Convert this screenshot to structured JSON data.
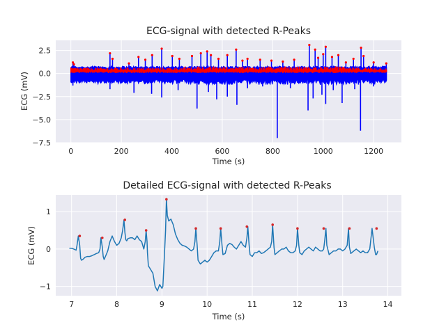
{
  "figure": {
    "background": "#ffffff",
    "axes_face": "#eaeaf2",
    "grid_color": "#ffffff"
  },
  "chart_data": [
    {
      "type": "line",
      "title": "ECG-signal with detected R-Peaks",
      "xlabel": "Time (s)",
      "ylabel": "ECG (mV)",
      "xlim": [
        -60,
        1310
      ],
      "ylim": [
        -7.5,
        3.6
      ],
      "xticks": [
        0,
        200,
        400,
        600,
        800,
        1000,
        1200
      ],
      "xtick_labels": [
        "0",
        "200",
        "400",
        "600",
        "800",
        "1000",
        "1200"
      ],
      "yticks": [
        2.5,
        0.0,
        -2.5,
        -5.0,
        -7.5
      ],
      "ytick_labels": [
        "2.5",
        "0.0",
        "−2.5",
        "−5.0",
        "−7.5"
      ],
      "grid": true,
      "series": [
        {
          "color": "#0000ff",
          "role": "ECG signal (full recording, 0–1250 s)"
        },
        {
          "color": "#ff0000",
          "role": "R-peak markers (dense red dots)"
        }
      ],
      "spikes_up": [
        [
          8,
          1.2
        ],
        [
          12,
          1.0
        ],
        [
          155,
          2.2
        ],
        [
          165,
          1.6
        ],
        [
          230,
          1.1
        ],
        [
          268,
          1.8
        ],
        [
          295,
          1.5
        ],
        [
          322,
          2.0
        ],
        [
          360,
          2.7
        ],
        [
          402,
          1.9
        ],
        [
          430,
          1.6
        ],
        [
          480,
          1.9
        ],
        [
          515,
          2.2
        ],
        [
          540,
          2.4
        ],
        [
          555,
          2.0
        ],
        [
          585,
          1.6
        ],
        [
          620,
          2.0
        ],
        [
          655,
          2.6
        ],
        [
          680,
          1.4
        ],
        [
          700,
          1.6
        ],
        [
          750,
          1.5
        ],
        [
          795,
          1.4
        ],
        [
          840,
          1.3
        ],
        [
          885,
          1.5
        ],
        [
          945,
          3.1
        ],
        [
          968,
          2.6
        ],
        [
          980,
          1.7
        ],
        [
          1000,
          2.1
        ],
        [
          1010,
          2.9
        ],
        [
          1035,
          1.8
        ],
        [
          1060,
          2.0
        ],
        [
          1090,
          1.2
        ],
        [
          1120,
          1.6
        ],
        [
          1150,
          2.8
        ],
        [
          1160,
          1.9
        ],
        [
          1200,
          1.2
        ],
        [
          1250,
          1.1
        ]
      ],
      "spikes_down": [
        [
          8,
          -1.3
        ],
        [
          155,
          -1.7
        ],
        [
          165,
          -1.0
        ],
        [
          250,
          -2.1
        ],
        [
          320,
          -2.2
        ],
        [
          360,
          -2.6
        ],
        [
          425,
          -1.8
        ],
        [
          500,
          -3.8
        ],
        [
          545,
          -2.0
        ],
        [
          578,
          -2.8
        ],
        [
          620,
          -2.5
        ],
        [
          658,
          -3.4
        ],
        [
          700,
          -1.6
        ],
        [
          760,
          -1.4
        ],
        [
          818,
          -7.0
        ],
        [
          870,
          -1.6
        ],
        [
          940,
          -4.0
        ],
        [
          960,
          -2.7
        ],
        [
          995,
          -2.3
        ],
        [
          1010,
          -3.3
        ],
        [
          1040,
          -1.8
        ],
        [
          1075,
          -3.2
        ],
        [
          1125,
          -1.7
        ],
        [
          1140,
          -1.2
        ],
        [
          1148,
          -6.2
        ],
        [
          1200,
          -1.4
        ]
      ]
    },
    {
      "type": "line",
      "title": "Detailed ECG-signal with detected R-Peaks",
      "xlabel": "Time (s)",
      "ylabel": "ECG (mV)",
      "xlim": [
        6.65,
        14.3
      ],
      "ylim": [
        -1.25,
        1.45
      ],
      "xticks": [
        7,
        8,
        9,
        10,
        11,
        12,
        13,
        14
      ],
      "xtick_labels": [
        "7",
        "8",
        "9",
        "10",
        "11",
        "12",
        "13",
        "14"
      ],
      "yticks": [
        1,
        0,
        -1
      ],
      "ytick_labels": [
        "1",
        "0",
        "−1"
      ],
      "grid": true,
      "series": [
        {
          "color": "#1f77b4",
          "role": "ECG signal (detail)"
        },
        {
          "color": "#d62728",
          "role": "R-peak markers"
        }
      ],
      "signal_x": [
        6.95,
        7.0,
        7.05,
        7.1,
        7.12,
        7.15,
        7.18,
        7.2,
        7.22,
        7.25,
        7.3,
        7.35,
        7.4,
        7.45,
        7.5,
        7.55,
        7.6,
        7.63,
        7.65,
        7.68,
        7.7,
        7.72,
        7.75,
        7.8,
        7.85,
        7.9,
        7.95,
        8.0,
        8.05,
        8.1,
        8.13,
        8.16,
        8.18,
        8.2,
        8.22,
        8.25,
        8.3,
        8.35,
        8.4,
        8.45,
        8.5,
        8.55,
        8.6,
        8.63,
        8.65,
        8.67,
        8.68,
        8.7,
        8.75,
        8.8,
        8.85,
        8.9,
        8.95,
        9.0,
        9.02,
        9.05,
        9.08,
        9.1,
        9.12,
        9.15,
        9.2,
        9.25,
        9.3,
        9.35,
        9.4,
        9.45,
        9.5,
        9.55,
        9.6,
        9.65,
        9.7,
        9.73,
        9.75,
        9.78,
        9.8,
        9.85,
        9.9,
        9.95,
        10.0,
        10.05,
        10.1,
        10.15,
        10.2,
        10.25,
        10.28,
        10.3,
        10.33,
        10.35,
        10.4,
        10.45,
        10.5,
        10.55,
        10.6,
        10.65,
        10.7,
        10.75,
        10.8,
        10.85,
        10.88,
        10.9,
        10.93,
        10.95,
        11.0,
        11.05,
        11.1,
        11.15,
        11.2,
        11.25,
        11.3,
        11.35,
        11.4,
        11.43,
        11.45,
        11.48,
        11.5,
        11.55,
        11.6,
        11.65,
        11.7,
        11.75,
        11.8,
        11.85,
        11.9,
        11.95,
        11.98,
        12.0,
        12.03,
        12.05,
        12.1,
        12.15,
        12.2,
        12.25,
        12.3,
        12.35,
        12.4,
        12.45,
        12.5,
        12.55,
        12.58,
        12.6,
        12.63,
        12.65,
        12.7,
        12.75,
        12.8,
        12.85,
        12.9,
        12.95,
        13.0,
        13.05,
        13.1,
        13.13,
        13.15,
        13.18,
        13.2,
        13.25,
        13.3,
        13.35,
        13.4,
        13.45,
        13.5,
        13.55,
        13.6,
        13.65,
        13.7,
        13.73,
        13.75,
        13.78,
        13.8,
        13.85,
        13.88
      ],
      "signal_y": [
        0.02,
        0.02,
        0.0,
        -0.03,
        0.1,
        0.35,
        0.1,
        -0.25,
        -0.3,
        -0.28,
        -0.22,
        -0.2,
        -0.2,
        -0.18,
        -0.15,
        -0.12,
        -0.1,
        0.0,
        0.3,
        0.05,
        -0.2,
        -0.28,
        -0.2,
        -0.05,
        0.2,
        0.35,
        0.2,
        0.1,
        0.15,
        0.3,
        0.5,
        0.78,
        0.45,
        0.25,
        0.22,
        0.28,
        0.3,
        0.3,
        0.25,
        0.35,
        0.25,
        0.2,
        0.0,
        0.2,
        0.5,
        0.2,
        -0.1,
        -0.45,
        -0.55,
        -0.65,
        -1.0,
        -1.12,
        -0.95,
        -1.05,
        -1.0,
        -0.3,
        0.5,
        1.33,
        0.9,
        0.75,
        0.8,
        0.65,
        0.4,
        0.25,
        0.15,
        0.1,
        0.08,
        0.05,
        0.0,
        -0.05,
        0.0,
        0.2,
        0.55,
        0.1,
        -0.3,
        -0.4,
        -0.35,
        -0.3,
        -0.35,
        -0.3,
        -0.2,
        -0.1,
        -0.05,
        -0.05,
        0.2,
        0.55,
        0.1,
        -0.15,
        -0.12,
        0.1,
        0.15,
        0.12,
        0.05,
        0.0,
        0.1,
        0.2,
        0.1,
        0.05,
        0.3,
        0.6,
        0.1,
        -0.15,
        -0.2,
        -0.1,
        -0.1,
        -0.05,
        -0.12,
        -0.1,
        -0.05,
        0.0,
        0.05,
        0.2,
        0.65,
        0.05,
        -0.15,
        -0.1,
        -0.05,
        0.0,
        0.0,
        0.05,
        -0.05,
        -0.1,
        -0.1,
        -0.05,
        0.1,
        0.55,
        0.1,
        -0.1,
        -0.15,
        -0.05,
        0.0,
        0.05,
        0.0,
        -0.05,
        0.05,
        0.0,
        -0.05,
        -0.05,
        0.0,
        0.2,
        0.55,
        0.1,
        -0.15,
        -0.1,
        -0.05,
        -0.05,
        0.0,
        0.0,
        -0.05,
        0.0,
        0.1,
        0.55,
        0.05,
        -0.12,
        -0.1,
        -0.05,
        0.0,
        -0.05,
        -0.1,
        -0.05,
        -0.1,
        -0.1,
        0.0,
        0.55,
        0.05,
        -0.15,
        -0.15,
        -0.05
      ],
      "peaks_x": [
        7.18,
        7.68,
        8.18,
        8.65,
        9.1,
        9.75,
        10.3,
        10.88,
        11.45,
        12.0,
        12.58,
        13.15,
        13.75
      ],
      "peaks_y": [
        0.35,
        0.3,
        0.78,
        0.5,
        1.33,
        0.55,
        0.55,
        0.6,
        0.65,
        0.55,
        0.55,
        0.55,
        0.55
      ]
    }
  ]
}
